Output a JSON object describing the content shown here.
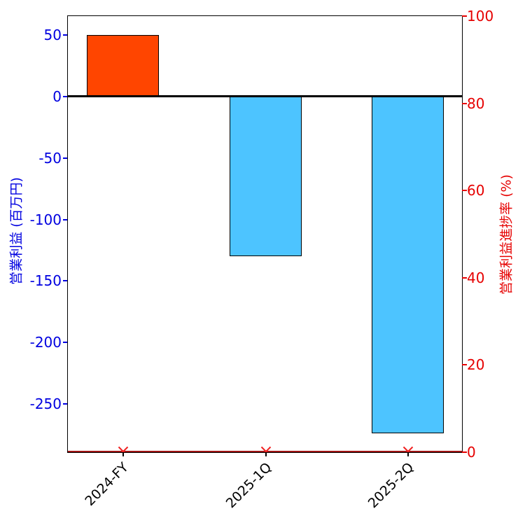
{
  "chart_data": {
    "type": "bar",
    "title": "",
    "categories": [
      "2024-FY",
      "2025-1Q",
      "2025-2Q"
    ],
    "series": [
      {
        "name": "営業利益",
        "type": "bar",
        "axis": "left",
        "values": [
          50,
          -130,
          -274
        ],
        "bar_colors": [
          "#FF4500",
          "#4DC4FF",
          "#4DC4FF"
        ],
        "bar_edge_color": "#000000"
      },
      {
        "name": "営業利益進捗率",
        "type": "line",
        "axis": "right",
        "values": [
          0,
          0,
          0
        ],
        "line_color": "#A01414",
        "marker": "x",
        "marker_color": "#F02020"
      }
    ],
    "left_axis": {
      "label": "営業利益 (百万円)",
      "color": "#0000E0",
      "tick_values": [
        50,
        0,
        -50,
        -100,
        -150,
        -200,
        -250
      ],
      "tick_labels": [
        "50",
        "0",
        "-50",
        "-100",
        "-150",
        "-200",
        "-250"
      ],
      "lim": [
        -289.3,
        65.5
      ]
    },
    "right_axis": {
      "label": "営業利益進捗率 (%)",
      "color": "#E60000",
      "tick_values": [
        100,
        80,
        60,
        40,
        20,
        0
      ],
      "tick_labels": [
        "100",
        "80",
        "60",
        "40",
        "20",
        "0"
      ],
      "lim": [
        0,
        100
      ]
    },
    "x_axis": {
      "tick_color": "#000000",
      "label_color": "#000000",
      "label_rotation_deg": 45
    },
    "zero_line": {
      "value": 0,
      "color": "#000000"
    },
    "grid": false,
    "legend": null,
    "background": "#FFFFFF"
  }
}
